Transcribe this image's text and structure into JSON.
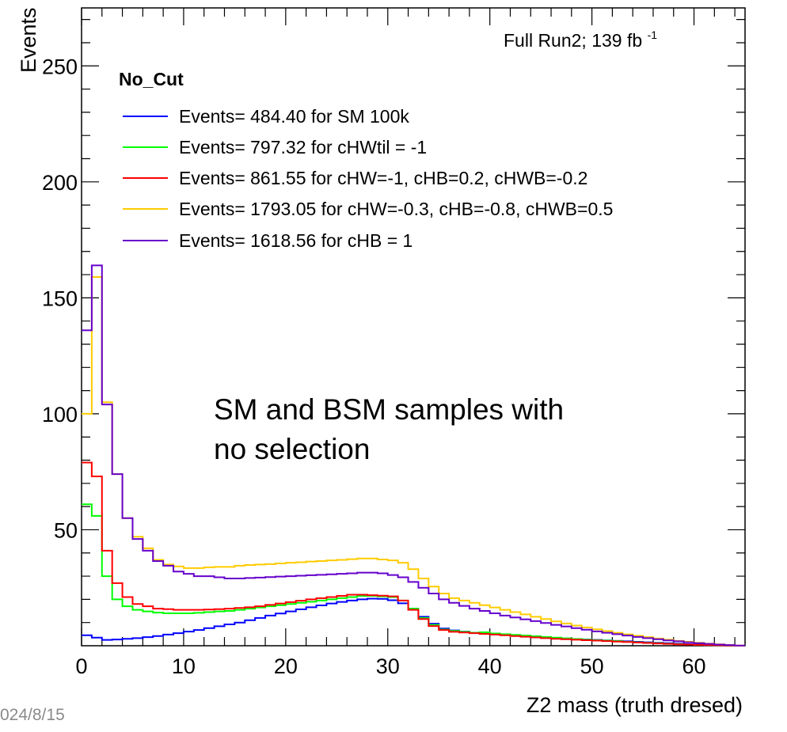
{
  "chart_data": {
    "type": "line",
    "style": "step-histogram",
    "xlabel": "Z2 mass (truth dresed)",
    "ylabel": "Events",
    "xlim": [
      0,
      65
    ],
    "ylim": [
      0,
      275
    ],
    "x_ticks": [
      0,
      10,
      20,
      30,
      40,
      50,
      60
    ],
    "y_ticks": [
      50,
      100,
      150,
      200,
      250
    ],
    "bin_width": 1,
    "grid": false,
    "legend_title": "No_Cut",
    "legend_position": "top-left",
    "run_label": "Full Run2; 139 fb",
    "run_label_superscript": "-1",
    "annotation_lines": [
      "SM and BSM samples with",
      "no selection"
    ],
    "footer_date": "024/8/15",
    "series": [
      {
        "name": "Events= 484.40 for SM 100k",
        "color": "#0000ff",
        "values": [
          4.5,
          3.5,
          2.5,
          2.7,
          3,
          3.3,
          3.7,
          4.2,
          4.8,
          5.4,
          6.1,
          6.8,
          7.6,
          8.4,
          9.2,
          10,
          11,
          12,
          13,
          13.9,
          14.8,
          15.7,
          16.6,
          17.4,
          18.2,
          18.9,
          19.5,
          20,
          20.3,
          20.2,
          19.6,
          18.3,
          16,
          12.5,
          9.5,
          7.4,
          6.6,
          6.1,
          5.6,
          5.2,
          4.9,
          4.6,
          4.3,
          4,
          3.8,
          3.5,
          3.3,
          3.1,
          2.9,
          2.7,
          2.5,
          2.3,
          2.1,
          1.9,
          1.7,
          1.5,
          1.3,
          1.1,
          0.9,
          0.7,
          0.5,
          0.3,
          0.2,
          0.1,
          0
        ]
      },
      {
        "name": "Events= 797.32 for cHWtil = -1",
        "color": "#00ff00",
        "values": [
          61,
          56,
          30,
          20,
          17,
          15.5,
          14.8,
          14.3,
          14,
          14,
          14,
          14.2,
          14.5,
          14.8,
          15,
          15.5,
          16,
          16.5,
          17,
          17.5,
          18,
          18.5,
          19,
          19.5,
          20,
          20.5,
          21,
          21.5,
          21.5,
          21.3,
          21,
          19.5,
          16,
          12,
          9,
          7,
          6.4,
          6,
          5.6,
          5.8,
          5.3,
          5,
          4.7,
          4.4,
          4.1,
          3.8,
          3.5,
          3.2,
          2.9,
          2.6,
          2.4,
          2.2,
          2,
          1.7,
          1.5,
          1.3,
          1.1,
          0.9,
          0.7,
          0.5,
          0.4,
          0.3,
          0.2,
          0.1,
          0
        ]
      },
      {
        "name": "Events= 861.55 for cHW=-1, cHB=0.2, cHWB=-0.2",
        "color": "#ff0000",
        "values": [
          79,
          73,
          41,
          27,
          21,
          18,
          17,
          16,
          15.8,
          15.5,
          15.5,
          15.5,
          15.6,
          15.8,
          16,
          16.3,
          16.6,
          17,
          17.6,
          18.2,
          18.8,
          19.4,
          20,
          20.5,
          21,
          21.5,
          22,
          22,
          21.8,
          21.6,
          21.3,
          19.5,
          15.5,
          11.5,
          8.5,
          6.8,
          6,
          5.7,
          5.4,
          5.1,
          4.8,
          4.5,
          4.2,
          3.9,
          3.6,
          3.3,
          3,
          2.8,
          2.6,
          2.4,
          2.2,
          2,
          1.8,
          1.6,
          1.4,
          1.2,
          1,
          0.8,
          0.6,
          0.5,
          0.4,
          0.3,
          0.2,
          0.1,
          0
        ]
      },
      {
        "name": "Events= 1793.05 for cHW=-0.3, cHB=-0.8, cHWB=0.5",
        "color": "#ffcc00",
        "values": [
          100,
          159,
          105,
          74,
          55,
          47,
          42,
          37,
          35,
          34.2,
          33.5,
          33.5,
          33.8,
          34,
          34,
          34.5,
          34.8,
          35,
          35.2,
          35.5,
          35.8,
          36,
          36.3,
          36.5,
          36.8,
          37,
          37.3,
          37.6,
          37.6,
          37.2,
          36.8,
          35.8,
          33,
          29,
          25.5,
          22.5,
          20.5,
          19.5,
          18.5,
          17.5,
          16.5,
          15.5,
          14.5,
          13.5,
          12.5,
          11.5,
          10.5,
          9.6,
          8.7,
          7.9,
          7.1,
          6.3,
          5.6,
          4.9,
          4.3,
          3.7,
          3.1,
          2.6,
          2.1,
          1.7,
          1.3,
          0.9,
          0.6,
          0.3,
          0.1
        ]
      },
      {
        "name": "Events= 1618.56 for cHB = 1",
        "color": "#6600cc",
        "values": [
          136,
          164,
          104,
          74,
          55,
          46,
          41,
          36.5,
          34.5,
          32,
          31,
          30,
          30,
          29.5,
          29,
          29,
          29.2,
          29.4,
          29.6,
          29.8,
          30,
          30.2,
          30.4,
          30.6,
          30.8,
          31,
          31.2,
          31.5,
          31.5,
          31.2,
          30.5,
          29.5,
          27.5,
          25,
          22.5,
          20,
          18.5,
          17.2,
          16,
          15,
          14,
          13,
          12.2,
          11.4,
          10.6,
          9.8,
          9,
          8.3,
          7.6,
          6.9,
          6.2,
          5.6,
          5,
          4.4,
          3.8,
          3.3,
          2.8,
          2.3,
          1.9,
          1.5,
          1.1,
          0.8,
          0.5,
          0.3,
          0.1
        ]
      }
    ]
  }
}
